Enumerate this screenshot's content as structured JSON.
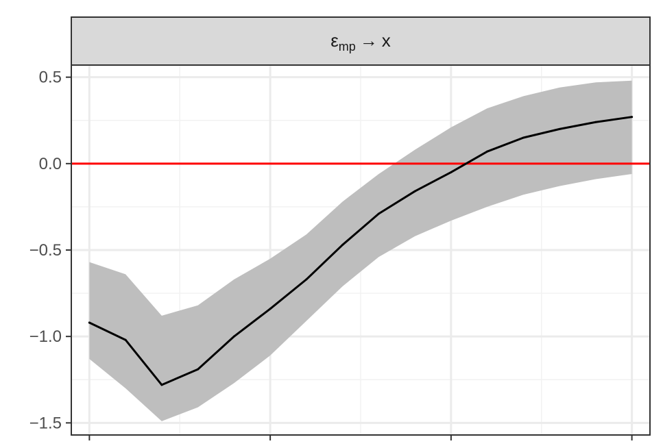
{
  "chart_data": {
    "type": "line",
    "facet_label": {
      "symbol": "ε",
      "subscript": "mp",
      "arrow": "→",
      "target": "x"
    },
    "title": "",
    "xlabel": "",
    "ylabel": "",
    "x": [
      0,
      1,
      2,
      3,
      4,
      5,
      6,
      7,
      8,
      9,
      10,
      11,
      12,
      13,
      14,
      15
    ],
    "xlim": [
      -0.5,
      15.5
    ],
    "ylim": [
      -1.57,
      0.57
    ],
    "yticks": [
      0.5,
      0.0,
      -0.5,
      -1.0,
      -1.5
    ],
    "ytick_labels": [
      "0.5",
      "0.0",
      "−0.5",
      "−1.0",
      "−1.5"
    ],
    "series": [
      {
        "values": [
          -0.92,
          -1.02,
          -1.28,
          -1.19,
          -1.0,
          -0.84,
          -0.67,
          -0.47,
          -0.29,
          -0.16,
          -0.05,
          0.07,
          0.15,
          0.2,
          0.24,
          0.27
        ],
        "color": "#000000"
      }
    ],
    "band": {
      "lower": [
        -1.13,
        -1.3,
        -1.49,
        -1.41,
        -1.27,
        -1.11,
        -0.91,
        -0.71,
        -0.54,
        -0.42,
        -0.33,
        -0.25,
        -0.18,
        -0.13,
        -0.09,
        -0.06
      ],
      "upper": [
        -0.57,
        -0.64,
        -0.88,
        -0.82,
        -0.67,
        -0.55,
        -0.41,
        -0.22,
        -0.06,
        0.08,
        0.21,
        0.32,
        0.39,
        0.44,
        0.47,
        0.48
      ],
      "color": "#bebebe"
    },
    "reference_line": {
      "y": 0.0,
      "color": "#ff0000"
    },
    "grid": true,
    "legend": "none",
    "colors": {
      "panel_border": "#333333",
      "strip_fill": "#d9d9d9",
      "grid_major": "#ebebeb",
      "grid_minor": "#f2f2f2",
      "tick_label": "#4d4d4d"
    }
  }
}
